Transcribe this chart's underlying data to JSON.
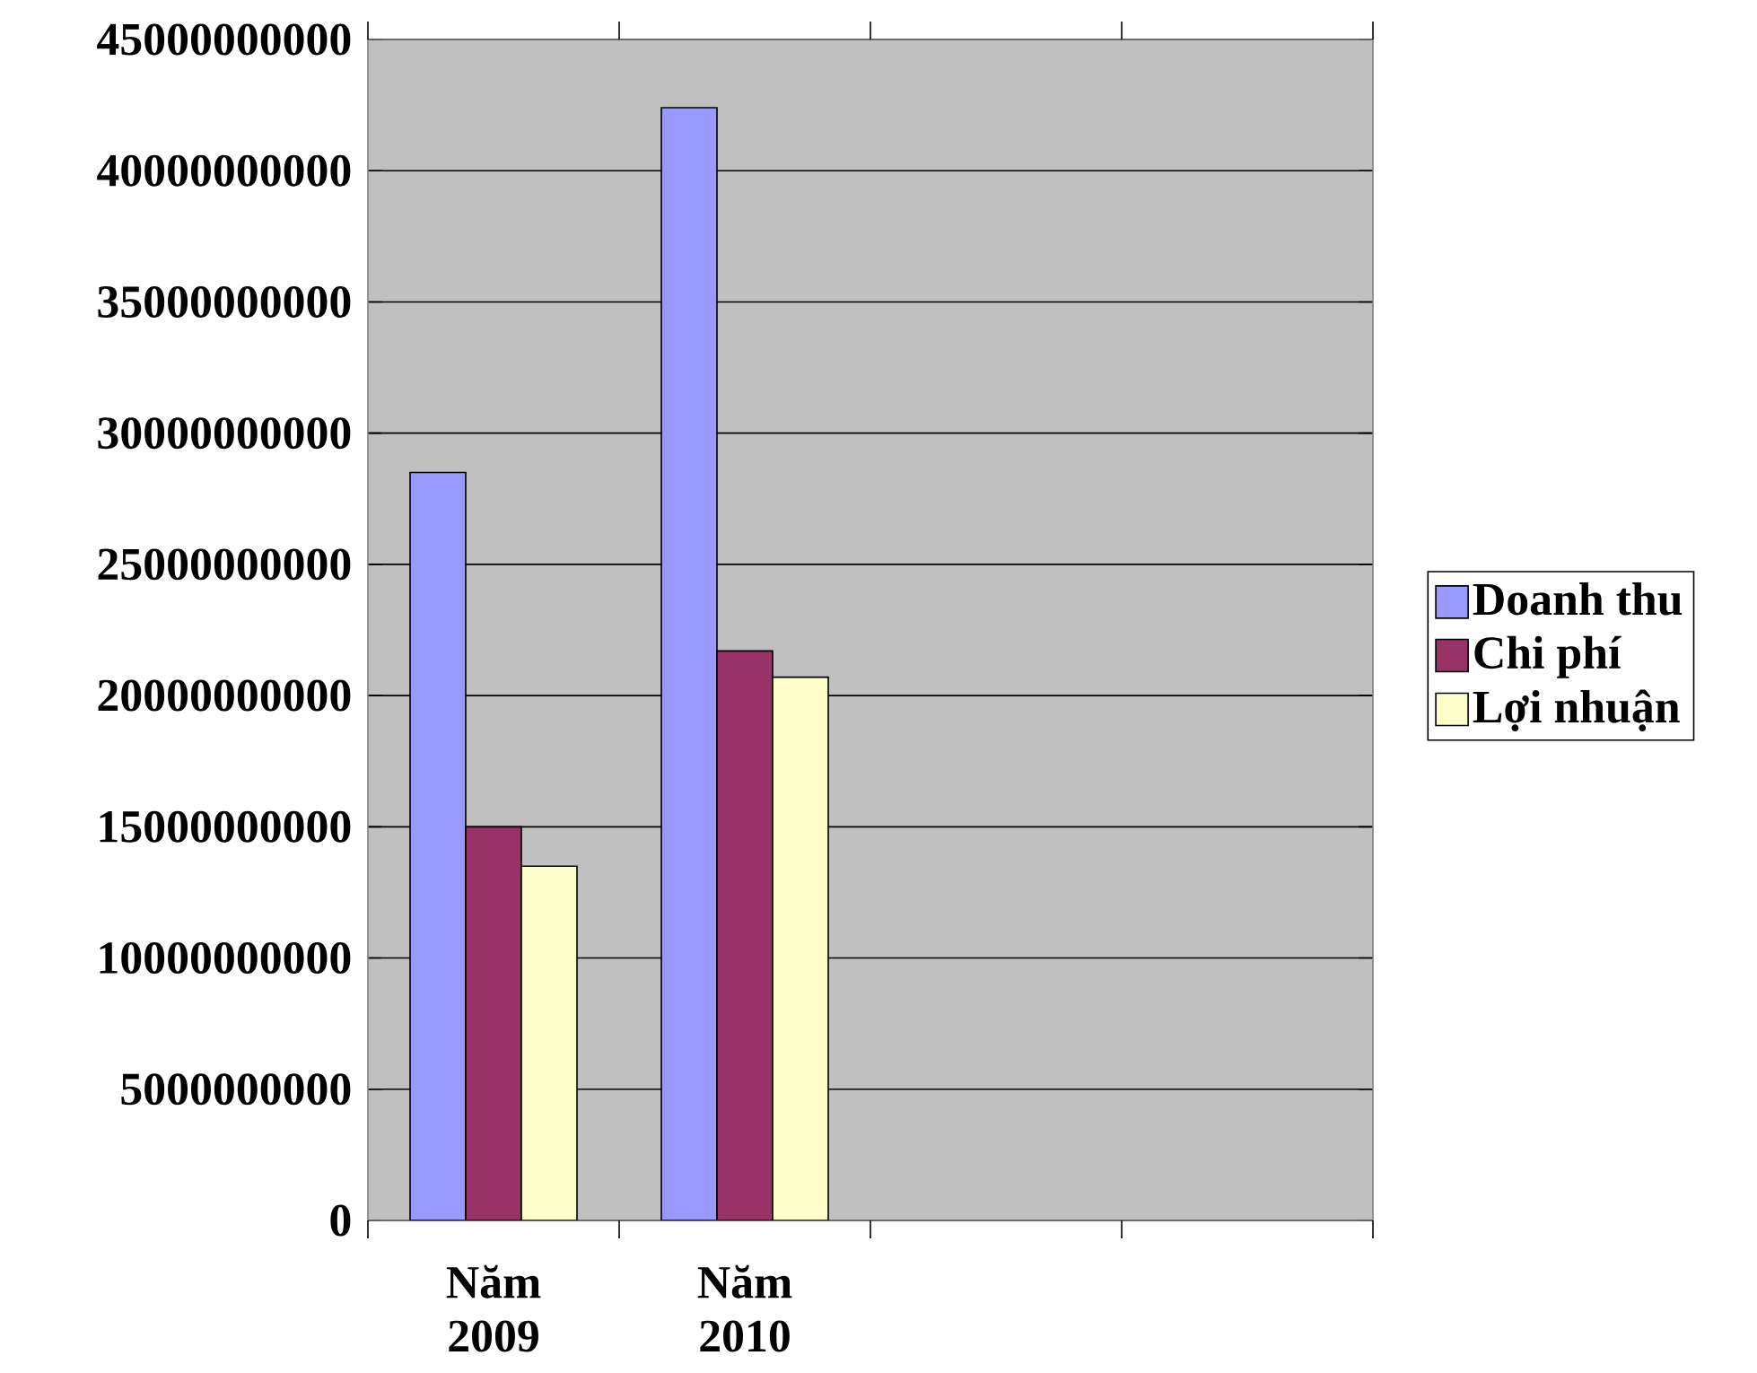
{
  "chart_data": {
    "type": "bar",
    "categories": [
      "Năm 2009",
      "Năm 2010",
      null,
      null
    ],
    "series": [
      {
        "name": "Doanh thu",
        "color": "#9999ff",
        "values": [
          28500000000,
          42400000000,
          null,
          null
        ]
      },
      {
        "name": "Chi phí",
        "color": "#993366",
        "values": [
          15000000000,
          21700000000,
          null,
          null
        ]
      },
      {
        "name": "Lợi nhuận",
        "color": "#ffffcc",
        "values": [
          13500000000,
          20700000000,
          null,
          null
        ]
      }
    ],
    "ylim": [
      0,
      45000000000
    ],
    "yticks": [
      0,
      5000000000,
      10000000000,
      15000000000,
      20000000000,
      25000000000,
      30000000000,
      35000000000,
      40000000000,
      45000000000
    ],
    "grid": "y",
    "legend": "right"
  }
}
